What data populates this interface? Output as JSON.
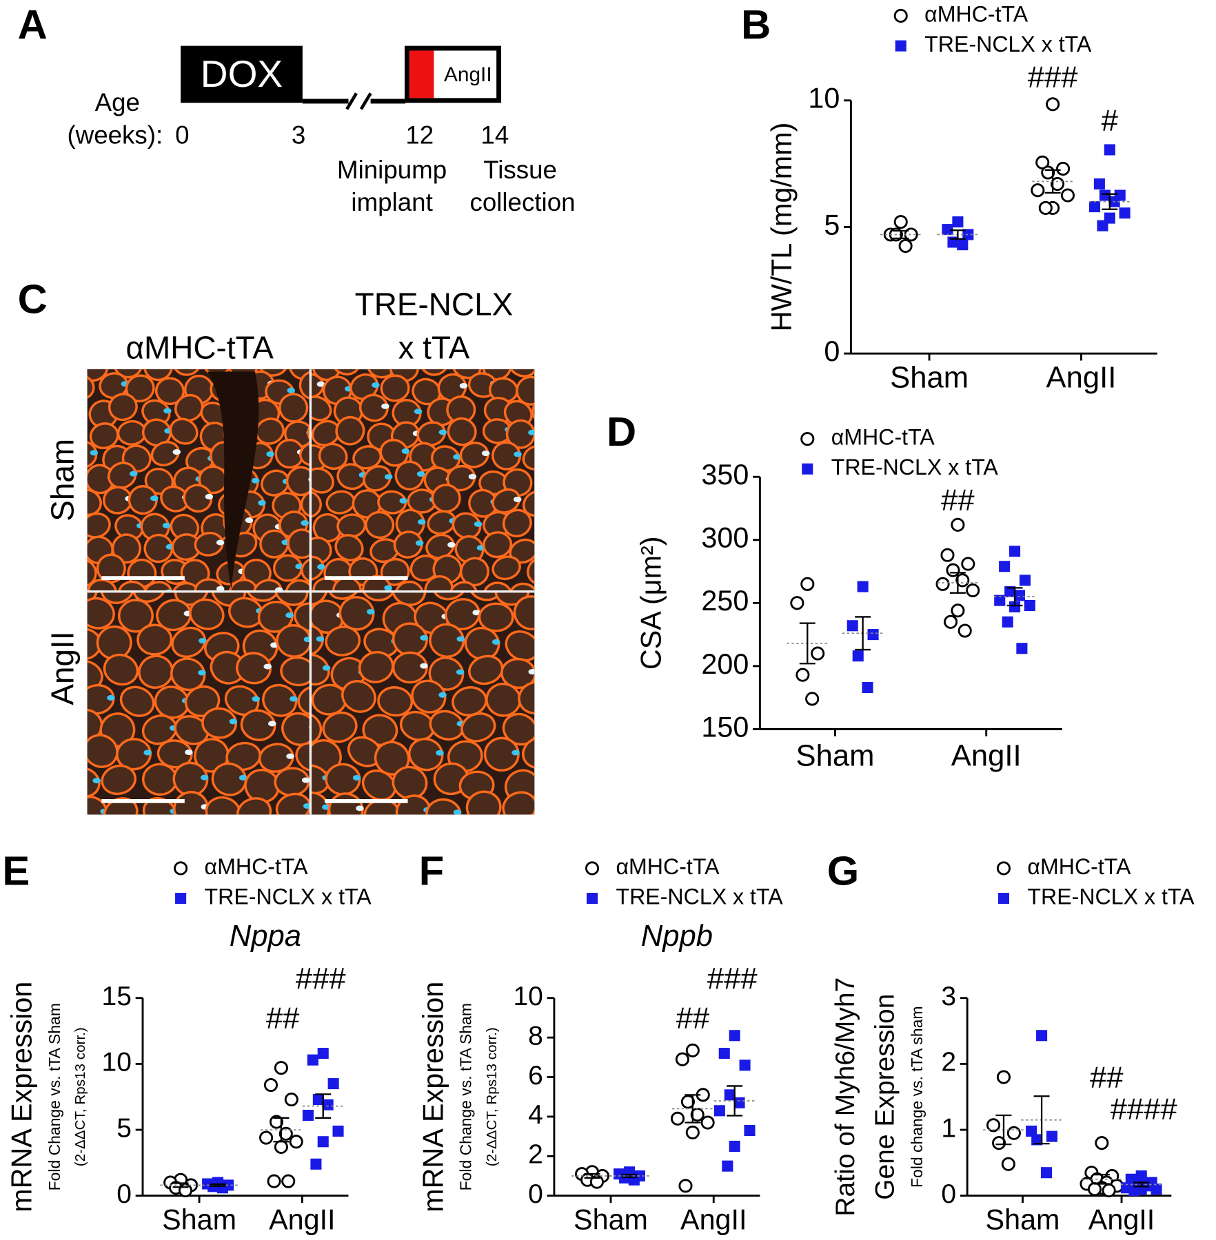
{
  "timeline": {
    "panel": "A",
    "dox": "DOX",
    "angii": "AngII",
    "axis_title": [
      "Age",
      "(weeks):"
    ],
    "ticks": [
      "0",
      "3",
      "12",
      "14"
    ],
    "events": [
      [
        "Minipump",
        "implant"
      ],
      [
        "Tissue",
        "collection"
      ]
    ]
  },
  "micrograph": {
    "panel": "C",
    "columns": [
      [
        "αMHC-tTA"
      ],
      [
        "TRE-NCLX",
        "x tTA"
      ]
    ],
    "rows": [
      "Sham",
      "AngII"
    ]
  },
  "chart_data": [
    {
      "type": "strip",
      "panel": "B",
      "ylabel": [
        "HW/TL (mg/mm)"
      ],
      "categories": [
        "Sham",
        "AngII"
      ],
      "ylim": [
        0,
        10
      ],
      "yticks": [
        0,
        5,
        10
      ],
      "series": [
        {
          "name": "αMHC-tTA",
          "color": "#000000",
          "marker": "circle",
          "values": [
            [
              5.2,
              4.7,
              4.7,
              4.7,
              4.25
            ],
            [
              9.85,
              7.55,
              7.3,
              7.15,
              6.7,
              6.45,
              6.25,
              5.75,
              5.75
            ]
          ],
          "means": [
            4.7,
            6.8
          ],
          "errors": [
            0.15,
            0.45
          ],
          "significance": [
            null,
            "###"
          ]
        },
        {
          "name": "TRE-NCLX x tTA",
          "color": "#1a1ae6",
          "marker": "square",
          "values": [
            [
              5.2,
              4.9,
              4.7,
              4.4,
              4.3
            ],
            [
              8.05,
              6.7,
              6.25,
              6.25,
              6.0,
              5.8,
              5.55,
              5.35,
              5.05
            ]
          ],
          "means": [
            4.7,
            6.0
          ],
          "errors": [
            0.17,
            0.3
          ],
          "significance": [
            null,
            "#"
          ]
        }
      ]
    },
    {
      "type": "strip",
      "panel": "D",
      "ylabel": [
        "CSA (μm²)"
      ],
      "categories": [
        "Sham",
        "AngII"
      ],
      "ylim": [
        150,
        350
      ],
      "yticks": [
        150,
        200,
        250,
        300,
        350
      ],
      "series": [
        {
          "name": "αMHC-tTA",
          "color": "#000000",
          "marker": "circle",
          "values": [
            [
              265,
              250,
              210,
              193,
              174
            ],
            [
              312,
              288,
              281,
              276,
              268,
              265,
              260,
              244,
              235,
              228
            ]
          ],
          "means": [
            218,
            266
          ],
          "errors": [
            16,
            8
          ],
          "significance": [
            null,
            "##"
          ]
        },
        {
          "name": "TRE-NCLX x tTA",
          "color": "#1a1ae6",
          "marker": "square",
          "values": [
            [
              263,
              232,
              225,
              208,
              183
            ],
            [
              291,
              279,
              268,
              259,
              256,
              252,
              248,
              247,
              235,
              214
            ]
          ],
          "means": [
            226,
            255
          ],
          "errors": [
            13,
            7
          ],
          "significance": [
            null,
            null
          ]
        }
      ]
    },
    {
      "type": "strip",
      "panel": "E",
      "title": "Nppa",
      "ylabel": [
        "mRNA Expression",
        "Fold Change vs. tTA Sham",
        "(2-ΔΔCT, Rps13 corr.)"
      ],
      "categories": [
        "Sham",
        "AngII"
      ],
      "ylim": [
        0,
        15
      ],
      "yticks": [
        0,
        5,
        10,
        15
      ],
      "series": [
        {
          "name": "αMHC-tTA",
          "color": "#000000",
          "marker": "circle",
          "values": [
            [
              1.2,
              1.0,
              0.8,
              0.6,
              0.4
            ],
            [
              9.7,
              8.4,
              7.3,
              5.6,
              4.7,
              4.4,
              4.1,
              3.7,
              1.1,
              1.1
            ]
          ],
          "means": [
            0.8,
            5.0
          ],
          "errors": [
            0.15,
            0.9
          ],
          "significance": [
            null,
            "##"
          ]
        },
        {
          "name": "TRE-NCLX x tTA",
          "color": "#1a1ae6",
          "marker": "square",
          "values": [
            [
              1.0,
              0.9,
              0.8,
              0.7,
              0.6
            ],
            [
              10.8,
              10.3,
              8.5,
              7.3,
              6.9,
              6.1,
              4.9,
              4.1,
              2.4
            ]
          ],
          "means": [
            0.8,
            6.8
          ],
          "errors": [
            0.07,
            0.9
          ],
          "significance": [
            null,
            "###"
          ]
        }
      ]
    },
    {
      "type": "strip",
      "panel": "F",
      "title": "Nppb",
      "ylabel": [
        "mRNA Expression",
        "Fold Change vs. tTA Sham",
        "(2-ΔΔCT, Rps13 corr.)"
      ],
      "categories": [
        "Sham",
        "AngII"
      ],
      "ylim": [
        0,
        10
      ],
      "yticks": [
        0,
        2,
        4,
        6,
        8,
        10
      ],
      "series": [
        {
          "name": "αMHC-tTA",
          "color": "#000000",
          "marker": "circle",
          "values": [
            [
              1.2,
              1.1,
              1.0,
              0.8,
              0.7
            ],
            [
              7.35,
              6.9,
              5.1,
              4.75,
              4.1,
              3.9,
              3.7,
              3.2,
              0.5
            ]
          ],
          "means": [
            1.0,
            4.4
          ],
          "errors": [
            0.1,
            0.7
          ],
          "significance": [
            null,
            "##"
          ]
        },
        {
          "name": "TRE-NCLX x tTA",
          "color": "#1a1ae6",
          "marker": "square",
          "values": [
            [
              1.2,
              1.1,
              1.0,
              0.9,
              0.8
            ],
            [
              8.1,
              7.2,
              6.6,
              5.1,
              4.7,
              4.3,
              3.3,
              2.5,
              1.5
            ]
          ],
          "means": [
            1.0,
            4.8
          ],
          "errors": [
            0.07,
            0.75
          ],
          "significance": [
            null,
            "###"
          ]
        }
      ]
    },
    {
      "type": "strip",
      "panel": "G",
      "ylabel": [
        "Ratio of Myh6/Myh7",
        "Gene Expression",
        "Fold change vs. tTA sham"
      ],
      "categories": [
        "Sham",
        "AngII"
      ],
      "ylim": [
        0,
        3
      ],
      "yticks": [
        0,
        1,
        2,
        3
      ],
      "series": [
        {
          "name": "αMHC-tTA",
          "color": "#000000",
          "marker": "circle",
          "values": [
            [
              1.8,
              1.07,
              0.95,
              0.8,
              0.48
            ],
            [
              0.8,
              0.35,
              0.3,
              0.25,
              0.2,
              0.18,
              0.15,
              0.12,
              0.1,
              0.08
            ]
          ],
          "means": [
            1.0,
            0.25
          ],
          "errors": [
            0.22,
            0.07
          ],
          "significance": [
            null,
            "##"
          ]
        },
        {
          "name": "TRE-NCLX x tTA",
          "color": "#1a1ae6",
          "marker": "square",
          "values": [
            [
              2.43,
              0.98,
              0.9,
              0.85,
              0.35
            ],
            [
              0.3,
              0.25,
              0.2,
              0.18,
              0.15,
              0.12,
              0.1,
              0.1,
              0.08
            ]
          ],
          "means": [
            1.15,
            0.17
          ],
          "errors": [
            0.36,
            0.03
          ],
          "significance": [
            null,
            "####"
          ]
        }
      ]
    }
  ]
}
